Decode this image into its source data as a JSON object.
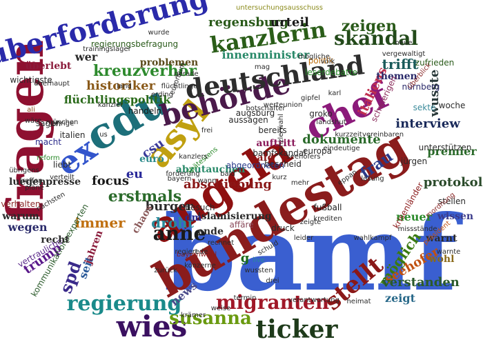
{
  "cloud": {
    "words": [
      {
        "text": "bamf",
        "color": "#3a5fd0"
      },
      {
        "text": "bundestag",
        "color": "#8a1c1c"
      },
      {
        "text": "angela",
        "color": "#8e1010"
      },
      {
        "text": "fragen",
        "color": "#8e1030"
      },
      {
        "text": "cdu",
        "color": "#1d6f7a"
      },
      {
        "text": "chef",
        "color": "#8b1a7a"
      },
      {
        "text": "asyl",
        "color": "#c0a010"
      },
      {
        "text": "ex",
        "color": "#3355cc"
      },
      {
        "text": "überforderung",
        "color": "#2a2aaa"
      },
      {
        "text": "behörde",
        "color": "#4a1a4a"
      },
      {
        "text": "deutschland",
        "color": "#2d2d2d"
      },
      {
        "text": "kanzlerin",
        "color": "#2a5d18"
      },
      {
        "text": "skandal",
        "color": "#234a1a"
      },
      {
        "text": "wies",
        "color": "#3a1060"
      },
      {
        "text": "ticker",
        "color": "#1e3a1a"
      },
      {
        "text": "stellt",
        "color": "#8a1818"
      },
      {
        "text": "migranten",
        "color": "#a01828"
      },
      {
        "text": "regierung",
        "color": "#1a8a8a"
      },
      {
        "text": "susanna",
        "color": "#6a9a10"
      },
      {
        "text": "anne",
        "color": "#1a1a1a"
      },
      {
        "text": "spd",
        "color": "#3a2a8a"
      },
      {
        "text": "erstmals",
        "color": "#2a6a2a"
      },
      {
        "text": "frau",
        "color": "#2a3a8a"
      },
      {
        "text": "kreuzverhör",
        "color": "#2d8a2d"
      },
      {
        "text": "interview",
        "color": "#1a2a5a"
      },
      {
        "text": "csu",
        "color": "#3a3a9a"
      },
      {
        "text": "dokumente",
        "color": "#2a6a2a"
      },
      {
        "text": "italiens",
        "color": "#c03050"
      },
      {
        "text": "trifft",
        "color": "#1a5a5a"
      },
      {
        "text": "zeigen",
        "color": "#2a5a1a"
      },
      {
        "text": "regensburg",
        "color": "#2a5a1a"
      },
      {
        "text": "urteil",
        "color": "#1a1a1a"
      },
      {
        "text": "abschiebung",
        "color": "#8a1818"
      },
      {
        "text": "immer",
        "color": "#c07010"
      },
      {
        "text": "focus",
        "color": "#1a1a1a"
      },
      {
        "text": "bürger",
        "color": "#2a2a2a"
      },
      {
        "text": "droht",
        "color": "#2a8a9a"
      },
      {
        "text": "möglich",
        "color": "#3a7a10"
      },
      {
        "text": "neuer",
        "color": "#2a8a2a"
      },
      {
        "text": "seehofer",
        "color": "#c05010"
      },
      {
        "text": "verstanden",
        "color": "#2a5a2a"
      },
      {
        "text": "news",
        "color": "#4a4a8a"
      },
      {
        "text": "wusste",
        "color": "#2a3a3a"
      },
      {
        "text": "protokoll",
        "color": "#2a4a2a"
      },
      {
        "text": "zeigt",
        "color": "#2a6a8a"
      },
      {
        "text": "innenminister",
        "color": "#2a8a6a"
      },
      {
        "text": "eu",
        "color": "#2a2a9a"
      },
      {
        "text": "premier",
        "color": "#2a6a2a"
      },
      {
        "text": "wissen",
        "color": "#3a3a8a"
      },
      {
        "text": "auftritt",
        "color": "#8a1a5a"
      },
      {
        "text": "abzutauchen",
        "color": "#2a8a6a"
      },
      {
        "text": "seit",
        "color": "#2a5a9a"
      },
      {
        "text": "wegen",
        "color": "#2a2a6a"
      },
      {
        "text": "ende",
        "color": "#2a2a2a"
      },
      {
        "text": "trump",
        "color": "#5a1a8a"
      },
      {
        "text": "historiker",
        "color": "#8a5a1a"
      },
      {
        "text": "flüchtlingspolitik",
        "color": "#2a6a1a"
      },
      {
        "text": "chaos",
        "color": "#8a5a5a"
      },
      {
        "text": "jahren",
        "color": "#8a1a3a"
      },
      {
        "text": "handeln",
        "color": "#1a1a1a"
      },
      {
        "text": "euro",
        "color": "#2a8a8a"
      },
      {
        "text": "kommunikationsexperten",
        "color": "#2a5a2a"
      },
      {
        "text": "islamisierung",
        "color": "#2a2a2a"
      },
      {
        "text": "luegenpresse",
        "color": "#2a2a2a"
      },
      {
        "text": "wer",
        "color": "#2a2a2a"
      },
      {
        "text": "problemen",
        "color": "#5a4a1a"
      },
      {
        "text": "politik",
        "color": "#c07010"
      },
      {
        "text": "themen",
        "color": "#2a2a6a"
      },
      {
        "text": "zufrieden",
        "color": "#2a5a1a"
      },
      {
        "text": "woche",
        "color": "#2a2a2a"
      },
      {
        "text": "fußball",
        "color": "#1a1a1a"
      },
      {
        "text": "warnt",
        "color": "#2a2a2a"
      },
      {
        "text": "wohl",
        "color": "#8a6a1a"
      },
      {
        "text": "druck",
        "color": "#2a2a2a"
      },
      {
        "text": "dm",
        "color": "#2a2a8a"
      },
      {
        "text": "besuch",
        "color": "#2a2a2a"
      },
      {
        "text": "g",
        "color": "#1a6a1a"
      },
      {
        "text": "afd",
        "color": "#8a1a1a"
      },
      {
        "text": "bescheid",
        "color": "#2a2a2a"
      },
      {
        "text": "europa",
        "color": "#2a2a2a"
      },
      {
        "text": "stellen",
        "color": "#2a2a2a"
      },
      {
        "text": "krisenländer",
        "color": "#8a1a1a"
      },
      {
        "text": "unterstützen",
        "color": "#2a2a2a"
      },
      {
        "text": "bereits",
        "color": "#2a2a2a"
      },
      {
        "text": "groko",
        "color": "#2a2a2a"
      },
      {
        "text": "jürgen",
        "color": "#2a2a2a"
      },
      {
        "text": "leserdebatte",
        "color": "#2a8a2a"
      },
      {
        "text": "schwierigen",
        "color": "#8a2a5a"
      },
      {
        "text": "sekte",
        "color": "#3a8a9a"
      },
      {
        "text": "nürnberg",
        "color": "#2a2a6a"
      },
      {
        "text": "wichtigste",
        "color": "#2a2a2a"
      },
      {
        "text": "überlebt",
        "color": "#8a1a3a"
      },
      {
        "text": "regierungsbefragung",
        "color": "#2a5a1a"
      },
      {
        "text": "untersuchungsausschuss",
        "color": "#8a8a1a"
      },
      {
        "text": "trainingslager",
        "color": "#2a2a2a"
      },
      {
        "text": "vertrauliche",
        "color": "#5a2a8a"
      },
      {
        "text": "recht",
        "color": "#2a2a2a"
      },
      {
        "text": "warum",
        "color": "#2a2a2a"
      },
      {
        "text": "verhalten",
        "color": "#8a2a2a"
      },
      {
        "text": "macht",
        "color": "#2a2a8a"
      },
      {
        "text": "liebt",
        "color": "#2a2a2a"
      },
      {
        "text": "italien",
        "color": "#2a2a2a"
      },
      {
        "text": "sagen",
        "color": "#2a2a2a"
      },
      {
        "text": "reform",
        "color": "#2a8a2a"
      },
      {
        "text": "übrigens",
        "color": "#2a2a2a"
      },
      {
        "text": "bayernwahl",
        "color": "#8a1a1a"
      },
      {
        "text": "neue",
        "color": "#2a2a2a"
      },
      {
        "text": "augsburg",
        "color": "#2a2a2a"
      },
      {
        "text": "aussagen",
        "color": "#2a2a2a"
      },
      {
        "text": "botschafter",
        "color": "#2a2a2a"
      },
      {
        "text": "bamfskandal",
        "color": "#2a2a2a"
      },
      {
        "text": "abgeordneten",
        "color": "#2a3a8a"
      },
      {
        "text": "affäre",
        "color": "#8a4a5a"
      },
      {
        "text": "missstände",
        "color": "#2a2a2a"
      },
      {
        "text": "präsident",
        "color": "#c05010"
      },
      {
        "text": "wurde",
        "color": "#2a2a2a"
      },
      {
        "text": "mag",
        "color": "#2a2a2a"
      },
      {
        "text": "flüchtlinge",
        "color": "#2a2a2a"
      },
      {
        "text": "vergewaltigt",
        "color": "#2a2a2a"
      },
      {
        "text": "land",
        "color": "#2a2a2a"
      },
      {
        "text": "landshut",
        "color": "#2a2a2a"
      },
      {
        "text": "kanzler",
        "color": "#2a2a2a"
      },
      {
        "text": "überblick",
        "color": "#8a2a2a"
      },
      {
        "text": "jährige",
        "color": "#2a2a2a"
      },
      {
        "text": "verteilt",
        "color": "#2a2a2a"
      },
      {
        "text": "nächsten",
        "color": "#2a2a2a"
      },
      {
        "text": "pläne",
        "color": "#2a2a2a"
      },
      {
        "text": "treffen",
        "color": "#2a2a2a"
      },
      {
        "text": "spätestens",
        "color": "#2a8a2a"
      },
      {
        "text": "ali",
        "color": "#8a4a1a"
      },
      {
        "text": "wäre",
        "color": "#2a2a2a"
      },
      {
        "text": "werteunion",
        "color": "#2a2a2a"
      },
      {
        "text": "gipfel",
        "color": "#2a2a2a"
      },
      {
        "text": "leider",
        "color": "#2a2a2a"
      },
      {
        "text": "kurz",
        "color": "#2a2a2a"
      },
      {
        "text": "eppan",
        "color": "#2a2a2a"
      },
      {
        "text": "mordnung",
        "color": "#8a2a2a"
      },
      {
        "text": "warnte",
        "color": "#2a2a2a"
      },
      {
        "text": "münchen",
        "color": "#2a2a2a"
      },
      {
        "text": "überhaupt",
        "color": "#2a2a2a"
      },
      {
        "text": "us",
        "color": "#2a2a2a"
      },
      {
        "text": "bald",
        "color": "#2a2a2a"
      },
      {
        "text": "forderung",
        "color": "#2a2a2a"
      },
      {
        "text": "erding",
        "color": "#2a2a2a"
      },
      {
        "text": "schuld",
        "color": "#2a2a2a"
      },
      {
        "text": "live",
        "color": "#2a8a9a"
      },
      {
        "text": "wussten",
        "color": "#2a2a2a"
      },
      {
        "text": "weise",
        "color": "#2a2a2a"
      },
      {
        "text": "konzerne",
        "color": "#2a2a2a"
      },
      {
        "text": "verantwortung",
        "color": "#2a2a2a"
      },
      {
        "text": "termin",
        "color": "#2a2a2a"
      },
      {
        "text": "kanzlerwahl",
        "color": "#2a2a2a"
      },
      {
        "text": "wahlkampf",
        "color": "#2a2a2a"
      },
      {
        "text": "krämer",
        "color": "#2a2a2a"
      },
      {
        "text": "mögliche",
        "color": "#2a2a2a"
      },
      {
        "text": "vereinbaren",
        "color": "#2a2a2a"
      },
      {
        "text": "kurzzeit",
        "color": "#2a2a2a"
      },
      {
        "text": "zeigte",
        "color": "#2a2a2a"
      },
      {
        "text": "drei",
        "color": "#2a2a2a"
      },
      {
        "text": "lösung",
        "color": "#2a2a2a"
      },
      {
        "text": "heimat",
        "color": "#2a2a2a"
      },
      {
        "text": "eindeutige",
        "color": "#2a2a2a"
      },
      {
        "text": "mehr",
        "color": "#2a2a2a"
      },
      {
        "text": "seehofers",
        "color": "#2a2a2a"
      },
      {
        "text": "kanzlers",
        "color": "#2a2a2a"
      },
      {
        "text": "bayern",
        "color": "#2a2a2a"
      },
      {
        "text": "karl",
        "color": "#2a2a2a"
      },
      {
        "text": "zurück",
        "color": "#2a2a2a"
      },
      {
        "text": "rede",
        "color": "#2a2a2a"
      },
      {
        "text": "regiert",
        "color": "#2a2a2a"
      },
      {
        "text": "frei",
        "color": "#2a2a2a"
      },
      {
        "text": "volk",
        "color": "#2a2a2a"
      },
      {
        "text": "krediten",
        "color": "#2a2a2a"
      },
      {
        "text": "euroraum",
        "color": "#2a2a2a"
      },
      {
        "text": "gerade",
        "color": "#2a2a2a"
      },
      {
        "text": "wann",
        "color": "#2a2a2a"
      },
      {
        "text": "rechnet",
        "color": "#2a2a2a"
      },
      {
        "text": "gründe",
        "color": "#2a2a2a"
      }
    ]
  }
}
